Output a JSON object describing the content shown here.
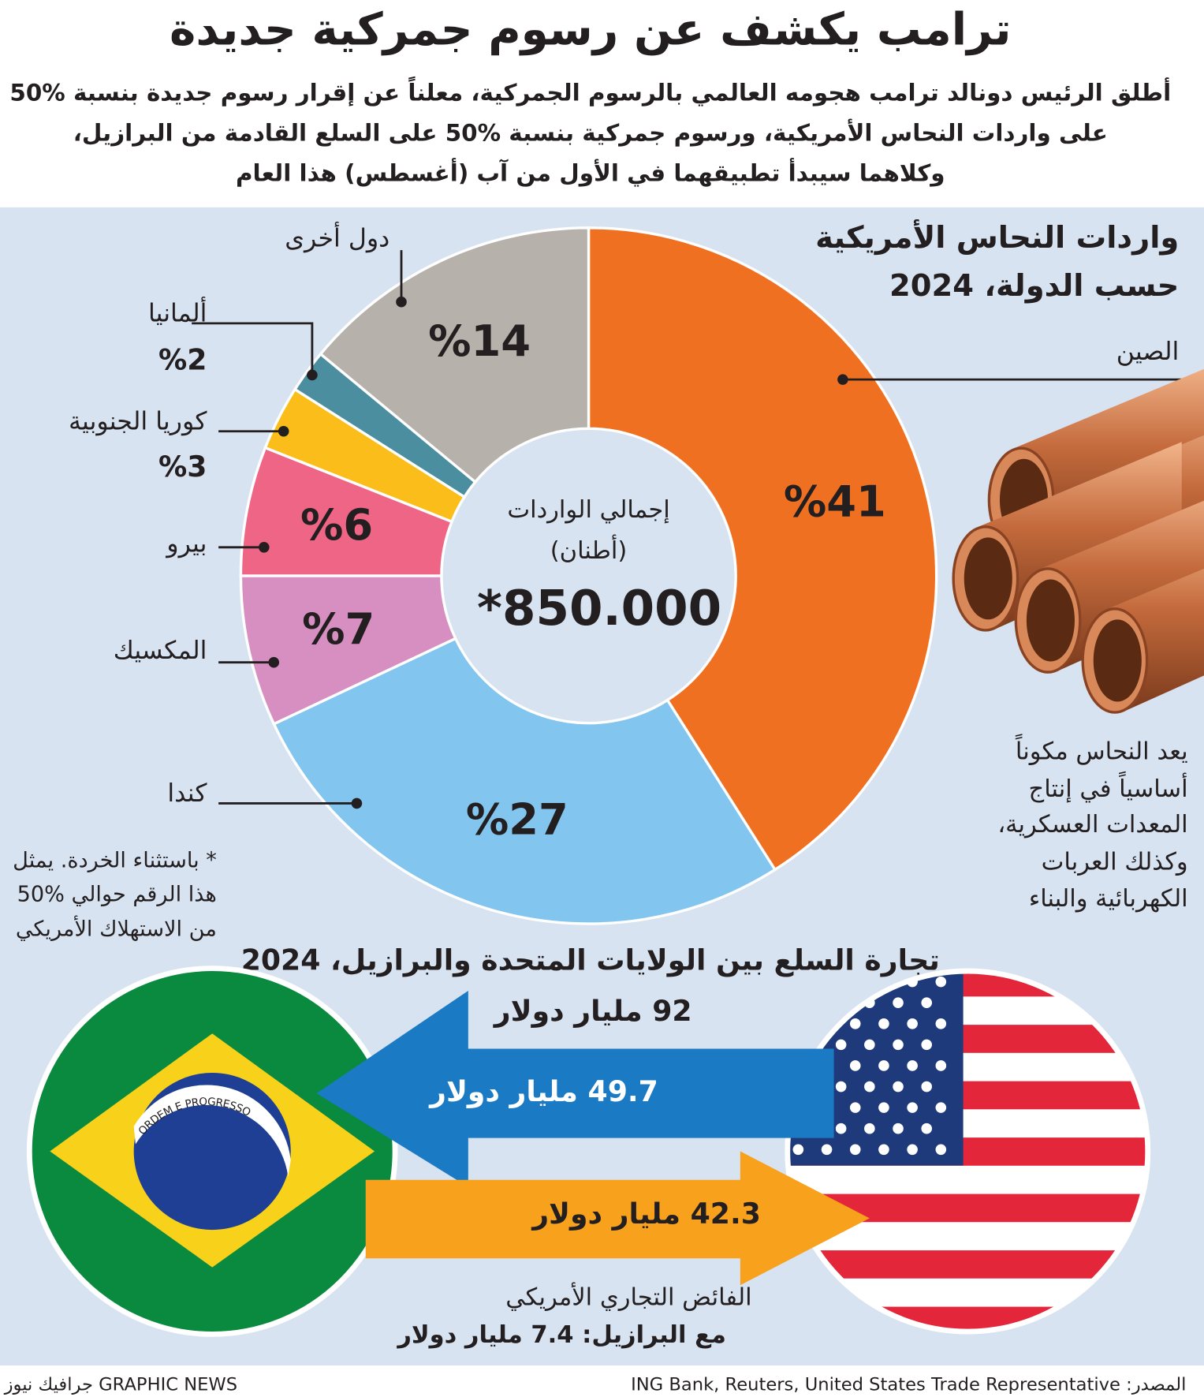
{
  "header": {
    "title": "ترامب يكشف عن رسوم جمركية جديدة",
    "subtitle": [
      "أطلق الرئيس دونالد ترامب هجومه العالمي بالرسوم الجمركية، معلناً عن إقرار رسوم جديدة بنسبة %50",
      "على واردات النحاس الأمريكية، ورسوم جمركية بنسبة %50 على السلع القادمة من البرازيل،",
      "وكلاهما سيبدأ تطبيقهما في الأول من آب (أغسطس) هذا العام"
    ]
  },
  "chart_data": {
    "type": "donut",
    "title": [
      "واردات النحاس الأمريكية",
      "حسب الدولة، 2024"
    ],
    "categories": [
      "الصين",
      "كندا",
      "المكسيك",
      "بيرو",
      "كوريا الجنوبية",
      "ألمانيا",
      "دول أخرى"
    ],
    "values": [
      41,
      27,
      7,
      6,
      3,
      2,
      14
    ],
    "value_labels": [
      "%41",
      "%27",
      "%7",
      "%6",
      "%3",
      "%2",
      "%14"
    ],
    "colors": [
      "#f07022",
      "#82c5ef",
      "#d68fc0",
      "#ee6586",
      "#fbbd1a",
      "#4a8ea0",
      "#b6b1ab"
    ],
    "center_label": [
      "إجمالي الواردات",
      "(أطنان)"
    ],
    "center_value": "*850.000",
    "footnote": [
      "* باستثناء الخردة. يمثل",
      "هذا الرقم حوالي %50",
      "من الاستهلاك الأمريكي"
    ]
  },
  "note": [
    "يعد النحاس مكوناً",
    "أساسياً في إنتاج",
    "المعدات العسكرية،",
    "وكذلك العربات",
    "الكهربائية والبناء"
  ],
  "trade": {
    "title": "تجارة السلع بين الولايات المتحدة والبرازيل، 2024",
    "total": "92 مليار دولار",
    "us_exports": "49.7 مليار دولار",
    "brazil_exports": "42.3 مليار دولار",
    "surplus": [
      "الفائض التجاري الأمريكي",
      "مع البرازيل: 7.4 مليار دولار"
    ],
    "flag_motto": "ORDEM E PROGRESSO"
  },
  "footer": {
    "source": "المصدر: ING Bank, Reuters, United States Trade Representative",
    "brand": "GRAPHIC NEWS جرافيك نيوز"
  }
}
